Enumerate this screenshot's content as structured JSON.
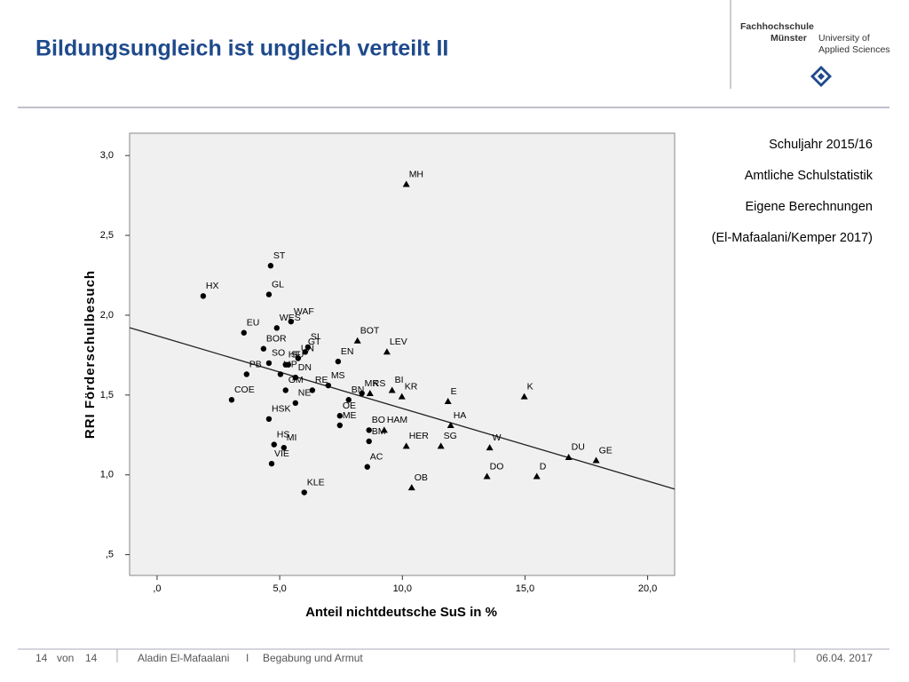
{
  "slide": {
    "title": "Bildungsungleich ist ungleich verteilt II",
    "logo": [
      "Fachhochschule",
      "Münster",
      "University of",
      "Applied Sciences"
    ],
    "notes": [
      "Schuljahr 2015/16",
      "Amtliche Schulstatistik",
      "Eigene Berechnungen",
      "(El-Mafaalani/Kemper 2017)"
    ],
    "footer": {
      "page": "14",
      "of": "von",
      "total": "14",
      "author": "Aladin El-Mafaalani",
      "separator": "I",
      "topic": "Begabung und Armut",
      "date": "06.04. 2017"
    }
  },
  "chart_data": {
    "type": "scatter",
    "x_label": "Anteil nichtdeutsche SuS in %",
    "y_label": "RRI Förderschulbesuch",
    "xlim": [
      -1.12,
      21.1
    ],
    "ylim": [
      0.37,
      3.14
    ],
    "xticks": [
      {
        "value": 0,
        "label": ",0"
      },
      {
        "value": 5,
        "label": "5,0"
      },
      {
        "value": 10,
        "label": "10,0"
      },
      {
        "value": 15,
        "label": "15,0"
      },
      {
        "value": 20,
        "label": "20,0"
      }
    ],
    "yticks": [
      {
        "value": 0.5,
        "label": ",5"
      },
      {
        "value": 1,
        "label": "1,0"
      },
      {
        "value": 1.5,
        "label": "1,5"
      },
      {
        "value": 2,
        "label": "2,0"
      },
      {
        "value": 2.5,
        "label": "2,5"
      },
      {
        "value": 3,
        "label": "3,0"
      }
    ],
    "series": [
      {
        "marker": "circle",
        "color": "#000000",
        "labels": [
          "ST",
          "GL",
          "HX",
          "WAF",
          "EU",
          "WES",
          "SI",
          "GT",
          "BOR",
          "SO",
          "UN",
          "HF",
          "PB",
          "LIP",
          "SU",
          "DN",
          "EN",
          "MS",
          "RE",
          "GM",
          "COE",
          "NE",
          "MK",
          "HSK",
          "OE",
          "BN",
          "ME",
          "BO",
          "HS",
          "MI",
          "BM",
          "AC",
          "VIE",
          "KLE"
        ],
        "x": [
          4.63,
          4.56,
          1.88,
          5.46,
          3.54,
          4.88,
          6.15,
          6.04,
          4.34,
          4.56,
          5.75,
          5.24,
          3.65,
          5.03,
          5.35,
          5.64,
          7.38,
          6.98,
          6.33,
          5.24,
          3.04,
          5.64,
          8.35,
          4.56,
          7.45,
          7.81,
          7.45,
          8.64,
          4.77,
          5.17,
          8.64,
          8.57,
          4.67,
          6.0
        ],
        "values": [
          2.31,
          2.13,
          2.12,
          1.96,
          1.89,
          1.92,
          1.8,
          1.77,
          1.79,
          1.7,
          1.73,
          1.69,
          1.63,
          1.63,
          1.69,
          1.61,
          1.71,
          1.56,
          1.53,
          1.53,
          1.47,
          1.45,
          1.51,
          1.35,
          1.37,
          1.47,
          1.31,
          1.28,
          1.19,
          1.17,
          1.21,
          1.05,
          1.07,
          0.89
        ]
      },
      {
        "marker": "triangle",
        "color": "#000000",
        "labels": [
          "MH",
          "BOT",
          "LEV",
          "BI",
          "KR",
          "RS",
          "E",
          "K",
          "HAM",
          "HA",
          "HER",
          "SG",
          "W",
          "DU",
          "GE",
          "DO",
          "D",
          "OB"
        ],
        "x": [
          10.16,
          8.17,
          9.37,
          9.58,
          9.98,
          8.68,
          11.86,
          14.97,
          9.26,
          11.97,
          10.16,
          11.57,
          13.56,
          16.78,
          17.9,
          13.45,
          15.48,
          10.38
        ],
        "values": [
          2.82,
          1.84,
          1.77,
          1.53,
          1.49,
          1.51,
          1.46,
          1.49,
          1.28,
          1.31,
          1.18,
          1.18,
          1.17,
          1.11,
          1.09,
          0.99,
          0.99,
          0.92
        ]
      }
    ],
    "fit_line": {
      "x": [
        -1.12,
        21.1
      ],
      "y": [
        1.922,
        0.911
      ]
    }
  }
}
